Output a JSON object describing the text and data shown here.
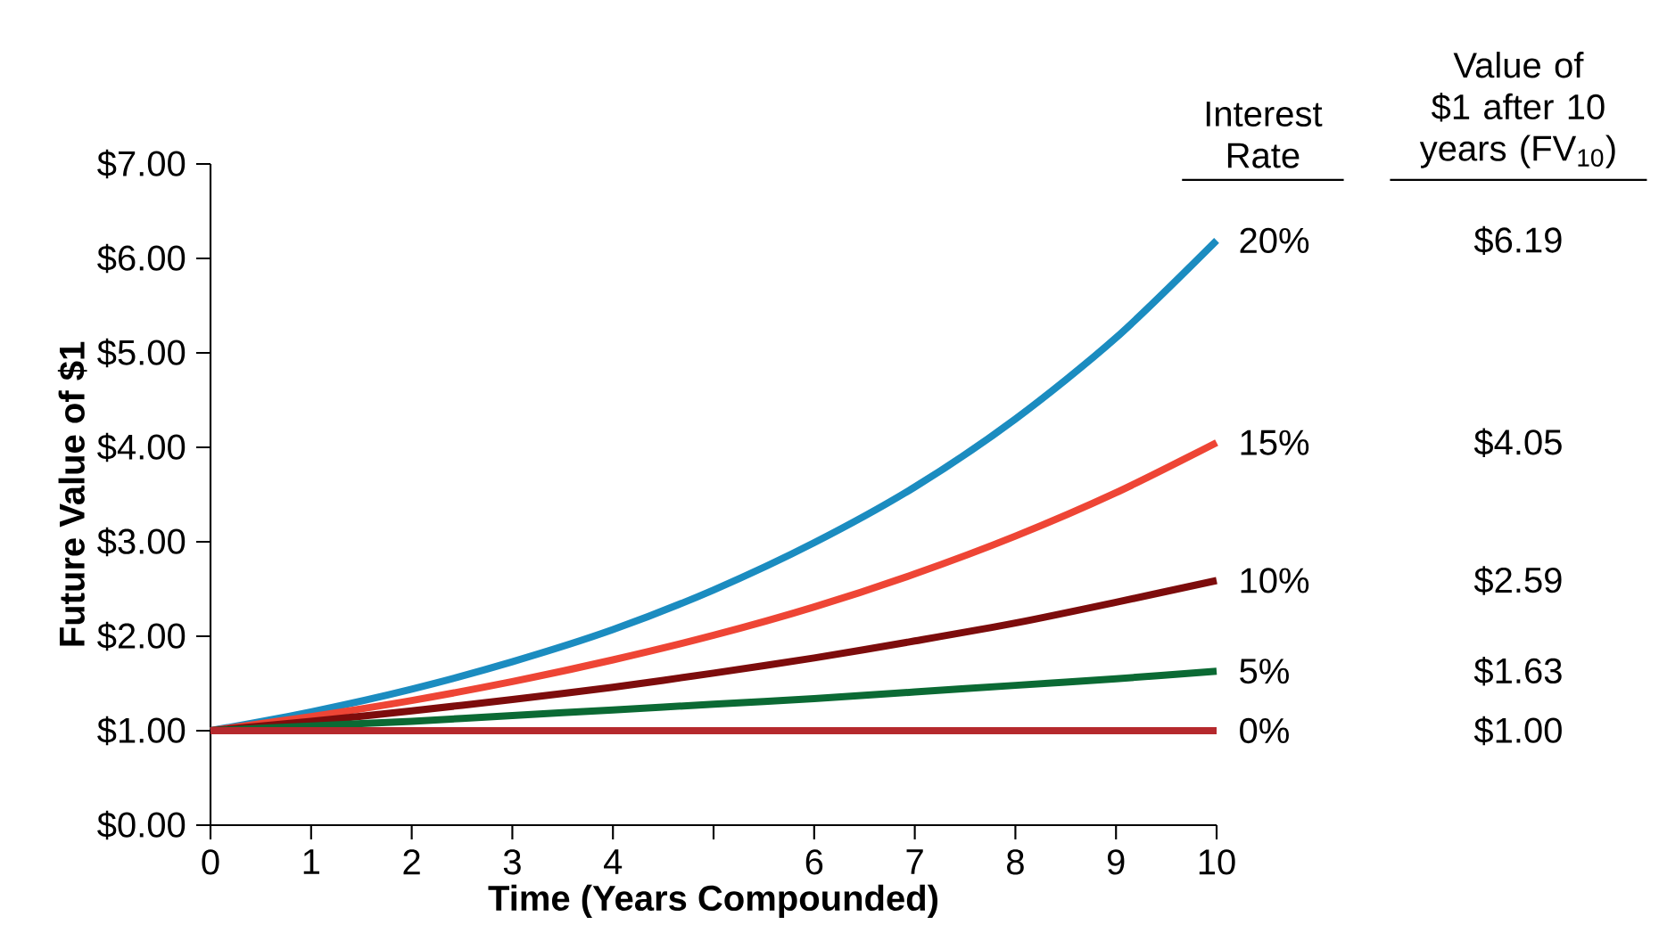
{
  "chart_data": {
    "type": "line",
    "xlabel": "Time (Years Compounded)",
    "ylabel": "Future Value of $1",
    "marker": "none",
    "x": [
      0,
      1,
      2,
      3,
      4,
      5,
      6,
      7,
      8,
      9,
      10
    ],
    "series": [
      {
        "name": "20%",
        "color": "#1b8cc0",
        "values": [
          1,
          1.2,
          1.44,
          1.73,
          2.07,
          2.49,
          2.99,
          3.58,
          4.3,
          5.16,
          6.19
        ]
      },
      {
        "name": "15%",
        "color": "#ee4535",
        "values": [
          1,
          1.15,
          1.32,
          1.52,
          1.75,
          2.01,
          2.31,
          2.66,
          3.06,
          3.52,
          4.05
        ]
      },
      {
        "name": "10%",
        "color": "#7d0c0c",
        "values": [
          1,
          1.1,
          1.21,
          1.33,
          1.46,
          1.61,
          1.77,
          1.95,
          2.14,
          2.36,
          2.59
        ]
      },
      {
        "name": "5%",
        "color": "#0b6a34",
        "values": [
          1,
          1.05,
          1.1,
          1.16,
          1.22,
          1.28,
          1.34,
          1.41,
          1.48,
          1.55,
          1.63
        ]
      },
      {
        "name": "0%",
        "color": "#b5292d",
        "values": [
          1,
          1,
          1,
          1,
          1,
          1,
          1,
          1,
          1,
          1,
          1
        ]
      }
    ],
    "xlim": [
      0,
      10
    ],
    "xticks": [
      0,
      1,
      2,
      3,
      4,
      {
        "value": 5,
        "label": null
      },
      6,
      7,
      8,
      9,
      10
    ],
    "ylim": [
      0,
      7
    ],
    "yticks": [
      {
        "value": 0,
        "label": "$0.00"
      },
      {
        "value": 1,
        "label": "$1.00"
      },
      {
        "value": 2,
        "label": "$2.00"
      },
      {
        "value": 3,
        "label": "$3.00"
      },
      {
        "value": 4,
        "label": "$4.00"
      },
      {
        "value": 5,
        "label": "$5.00"
      },
      {
        "value": 6,
        "label": "$6.00"
      },
      {
        "value": 7,
        "label": "$7.00"
      }
    ],
    "annotations": [
      "Interest Rate",
      "Value of $1 after 10 years (FV$_{10}$)",
      "$6.19",
      "$4.05",
      "$2.59",
      "$1.63",
      "$1.00"
    ]
  }
}
